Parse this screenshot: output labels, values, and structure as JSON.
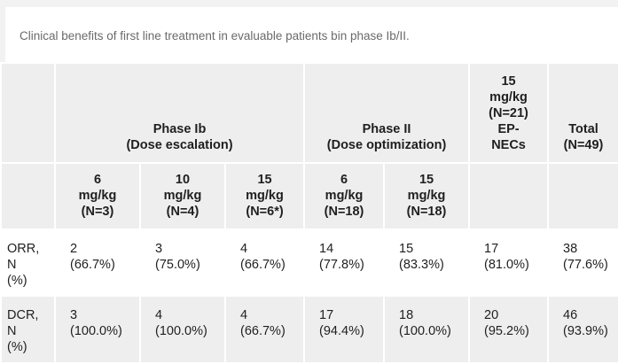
{
  "caption": "Clinical benefits of first line treatment in evaluable patients bin phase Ib/II.",
  "header": {
    "phase_ib": [
      "Phase Ib",
      "(Dose escalation)"
    ],
    "phase_ii": [
      "Phase II",
      "(Dose optimization)"
    ],
    "ep_necs": [
      "15",
      "mg/kg",
      "(N=21)",
      "EP-",
      "NECs"
    ],
    "total": [
      "Total",
      "(N=49)"
    ],
    "doses": [
      [
        "6",
        "mg/kg",
        "(N=3)"
      ],
      [
        "10",
        "mg/kg",
        "(N=4)"
      ],
      [
        "15",
        "mg/kg",
        "(N=6*)"
      ],
      [
        "6",
        "mg/kg",
        "(N=18)"
      ],
      [
        "15",
        "mg/kg",
        "(N=18)"
      ]
    ]
  },
  "rows": [
    {
      "label": [
        "ORR,",
        "N",
        "(%)"
      ],
      "cells": [
        [
          "2",
          "(66.7%)"
        ],
        [
          "3",
          "(75.0%)"
        ],
        [
          "4",
          "(66.7%)"
        ],
        [
          "14",
          "(77.8%)"
        ],
        [
          "15",
          "(83.3%)"
        ],
        [
          "17",
          "(81.0%)"
        ],
        [
          "38",
          "(77.6%)"
        ]
      ]
    },
    {
      "label": [
        "DCR,",
        "N",
        "(%)"
      ],
      "cells": [
        [
          "3",
          "(100.0%)"
        ],
        [
          "4",
          "(100.0%)"
        ],
        [
          "4",
          "(66.7%)"
        ],
        [
          "17",
          "(94.4%)"
        ],
        [
          "18",
          "(100.0%)"
        ],
        [
          "20",
          "(95.2%)"
        ],
        [
          "46",
          "(93.9%)"
        ]
      ]
    }
  ]
}
